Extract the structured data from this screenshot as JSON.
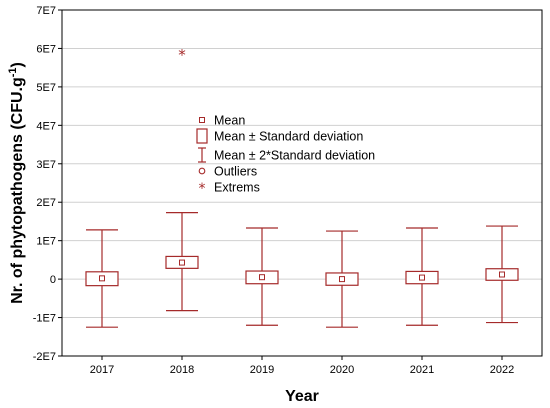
{
  "chart_data": {
    "type": "box",
    "xlabel": "Year",
    "ylabel_main": "Nr. of phytopathogens (CFU.g",
    "ylabel_sup": "-1",
    "ylabel_end": ")",
    "ylim": [
      -20000000,
      70000000
    ],
    "yticks": [
      -20000000,
      -10000000,
      0,
      10000000,
      20000000,
      30000000,
      40000000,
      50000000,
      60000000,
      70000000
    ],
    "ytick_labels": [
      "-2E7",
      "-1E7",
      "0",
      "1E7",
      "2E7",
      "3E7",
      "4E7",
      "5E7",
      "6E7",
      "7E7"
    ],
    "categories": [
      "2017",
      "2018",
      "2019",
      "2020",
      "2021",
      "2022"
    ],
    "mean": [
      200000,
      4300000,
      500000,
      0,
      400000,
      1200000
    ],
    "sd_low": [
      -1700000,
      2800000,
      -1200000,
      -1600000,
      -1200000,
      -300000
    ],
    "sd_high": [
      1900000,
      5900000,
      2100000,
      1600000,
      2000000,
      2700000
    ],
    "sd2_low": [
      -12500000,
      -8200000,
      -12000000,
      -12500000,
      -12000000,
      -11300000
    ],
    "sd2_high": [
      12800000,
      17300000,
      13300000,
      12500000,
      13300000,
      13800000
    ],
    "extremes": [
      {
        "category": "2018",
        "value": 58800000
      }
    ],
    "outliers": [],
    "grid": true,
    "legend_position": "center-upper",
    "legend": [
      {
        "marker": "mean",
        "label": "Mean"
      },
      {
        "marker": "box",
        "label": "Mean ± Standard deviation"
      },
      {
        "marker": "whisker",
        "label": "Mean ± 2*Standard deviation"
      },
      {
        "marker": "outlier",
        "label": "Outliers"
      },
      {
        "marker": "extreme",
        "label": "Extrems"
      }
    ],
    "color": "#a52a2a"
  }
}
